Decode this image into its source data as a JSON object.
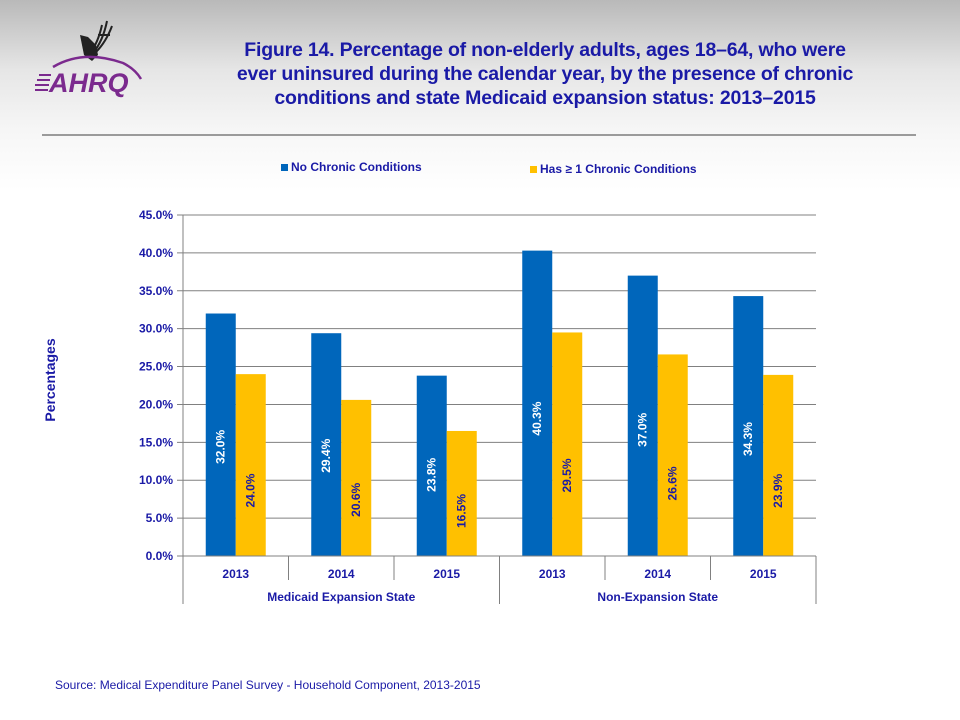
{
  "logo": {
    "name": "AHRQ",
    "colors": {
      "brand": "#7b2a8e",
      "eagle": "#222222"
    }
  },
  "header": {
    "title_lines": [
      "Figure 14. Percentage of non-elderly adults, ages 18–64, who were",
      "ever uninsured during the calendar year, by the presence of chronic",
      "conditions and state Medicaid expansion status: 2013–2015"
    ]
  },
  "footer": {
    "source": "Source: Medical Expenditure Panel Survey - Household Component, 2013-2015"
  },
  "colors": {
    "series_blue": "#0066bb",
    "series_gold": "#ffc000",
    "text": "#1a1aa6",
    "grid": "#808080"
  },
  "chart_data": {
    "type": "bar",
    "title": "Figure 14. Percentage of non-elderly adults, ages 18–64, who were ever uninsured during the calendar year, by the presence of chronic conditions and state Medicaid expansion status: 2013–2015",
    "xlabel": "",
    "ylabel": "Percentages",
    "ylim": [
      0,
      45
    ],
    "yticks": [
      0,
      5,
      10,
      15,
      20,
      25,
      30,
      35,
      40,
      45
    ],
    "ytick_labels": [
      "0.0%",
      "5.0%",
      "10.0%",
      "15.0%",
      "20.0%",
      "25.0%",
      "30.0%",
      "35.0%",
      "40.0%",
      "45.0%"
    ],
    "grid": true,
    "legend_position": "top",
    "categories": [
      "2013",
      "2014",
      "2015",
      "2013",
      "2014",
      "2015"
    ],
    "groups": [
      {
        "label": "Medicaid Expansion State",
        "span": 3
      },
      {
        "label": "Non-Expansion State",
        "span": 3
      }
    ],
    "series": [
      {
        "name": "No Chronic Conditions",
        "color": "#0066bb",
        "values": [
          32.0,
          29.4,
          23.8,
          40.3,
          37.0,
          34.3
        ],
        "labels": [
          "32.0%",
          "29.4%",
          "23.8%",
          "40.3%",
          "37.0%",
          "34.3%"
        ]
      },
      {
        "name": "Has ≥ 1 Chronic Conditions",
        "color": "#ffc000",
        "values": [
          24.0,
          20.6,
          16.5,
          29.5,
          26.6,
          23.9
        ],
        "labels": [
          "24.0%",
          "20.6%",
          "16.5%",
          "29.5%",
          "26.6%",
          "23.9%"
        ]
      }
    ]
  }
}
